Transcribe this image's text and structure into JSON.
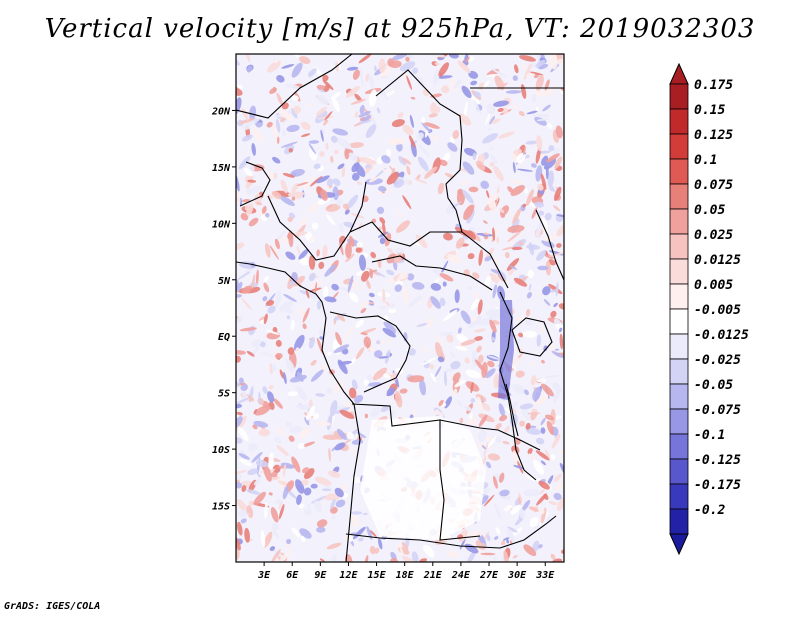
{
  "title": "Vertical velocity [m/s] at 925hPa, VT: 2019032303",
  "credit": "GrADS: IGES/COLA",
  "map": {
    "lon_range": [
      0,
      35
    ],
    "lat_range": [
      -20,
      25
    ],
    "x_ticks": [
      {
        "value": 3,
        "label": "3E"
      },
      {
        "value": 6,
        "label": "6E"
      },
      {
        "value": 9,
        "label": "9E"
      },
      {
        "value": 12,
        "label": "12E"
      },
      {
        "value": 15,
        "label": "15E"
      },
      {
        "value": 18,
        "label": "18E"
      },
      {
        "value": 21,
        "label": "21E"
      },
      {
        "value": 24,
        "label": "24E"
      },
      {
        "value": 27,
        "label": "27E"
      },
      {
        "value": 30,
        "label": "30E"
      },
      {
        "value": 33,
        "label": "33E"
      }
    ],
    "y_ticks": [
      {
        "value": 20,
        "label": "20N"
      },
      {
        "value": 15,
        "label": "15N"
      },
      {
        "value": 10,
        "label": "10N"
      },
      {
        "value": 5,
        "label": "5N"
      },
      {
        "value": 0,
        "label": "EQ"
      },
      {
        "value": -5,
        "label": "5S"
      },
      {
        "value": -10,
        "label": "10S"
      },
      {
        "value": -15,
        "label": "15S"
      }
    ]
  },
  "colorbar": {
    "levels": [
      {
        "label": "0.175",
        "color": "#a71f23"
      },
      {
        "label": "0.15",
        "color": "#c02a2a"
      },
      {
        "label": "0.125",
        "color": "#d23d3a"
      },
      {
        "label": "0.1",
        "color": "#e05a55"
      },
      {
        "label": "0.075",
        "color": "#e8807a"
      },
      {
        "label": "0.05",
        "color": "#f0a19d"
      },
      {
        "label": "0.025",
        "color": "#f6c3c0"
      },
      {
        "label": "0.0125",
        "color": "#fadcdb"
      },
      {
        "label": "0.005",
        "color": "#fdf0ef"
      },
      {
        "label": "-0.005",
        "color": "#ffffff"
      },
      {
        "label": "-0.0125",
        "color": "#ebebfb"
      },
      {
        "label": "-0.025",
        "color": "#d3d3f6"
      },
      {
        "label": "-0.05",
        "color": "#b7b7f0"
      },
      {
        "label": "-0.075",
        "color": "#9797e6"
      },
      {
        "label": "-0.1",
        "color": "#7676da"
      },
      {
        "label": "-0.125",
        "color": "#5858cc"
      },
      {
        "label": "-0.175",
        "color": "#3939bb"
      },
      {
        "label": "-0.2",
        "color": "#2222a6"
      }
    ],
    "top_arrow_color": "#a71f23",
    "bottom_arrow_color": "#1b1b9e"
  }
}
